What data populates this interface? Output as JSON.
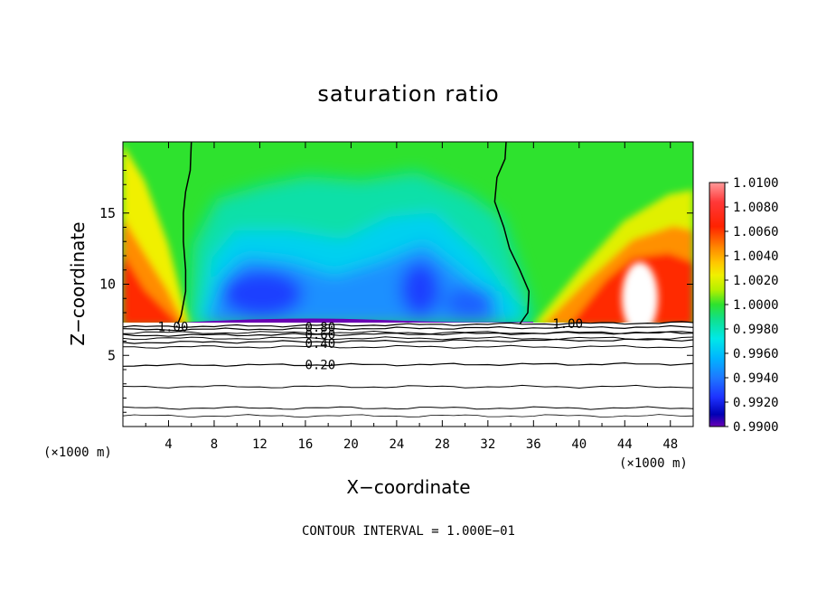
{
  "chart_data": {
    "type": "heatmap",
    "title": "saturation ratio",
    "xlabel": "X−coordinate",
    "ylabel": "Z−coordinate",
    "x_unit_left": "(×1000 m)",
    "x_unit_right": "(×1000 m)",
    "footer": "CONTOUR INTERVAL = 1.000E−01",
    "xlim": [
      0,
      50
    ],
    "ylim": [
      0,
      20
    ],
    "x_ticks": [
      4,
      8,
      12,
      16,
      20,
      24,
      28,
      32,
      36,
      40,
      44,
      48
    ],
    "y_ticks": [
      5,
      10,
      15
    ],
    "grid": false,
    "colorbar": {
      "levels": [
        "1.0100",
        "1.0080",
        "1.0060",
        "1.0040",
        "1.0020",
        "1.0000",
        "0.9980",
        "0.9960",
        "0.9940",
        "0.9920",
        "0.9900"
      ],
      "colors_top_to_bottom": [
        "#ff9090",
        "#ff3030",
        "#ff2200",
        "#ff8c00",
        "#ffc800",
        "#f0f000",
        "#b4f000",
        "#28e028",
        "#10e08c",
        "#00e8e8",
        "#00b4ff",
        "#1e78ff",
        "#1e32ff",
        "#0000b4",
        "#6a00b4"
      ]
    },
    "contour_lines": [
      {
        "label": "1.00",
        "z_at_left": 7.0,
        "z_at_right": 7.3
      },
      {
        "label": "0.80",
        "z_at_left": 6.8,
        "z_at_right": 7.0
      },
      {
        "label": "0.60",
        "z_at_left": 6.4,
        "z_at_right": 6.6
      },
      {
        "label": "0.40",
        "z_at_left": 5.9,
        "z_at_right": 6.1
      },
      {
        "label": "0.20",
        "z_at_left": 4.3,
        "z_at_right": 4.4
      }
    ],
    "saturation_boundary": {
      "label": "1.00",
      "left_x_at_z": [
        [
          4.8,
          7.2
        ],
        [
          5.1,
          7.8
        ],
        [
          5.5,
          9.5
        ],
        [
          5.5,
          11.0
        ],
        [
          5.3,
          13.0
        ],
        [
          5.3,
          15.0
        ],
        [
          5.5,
          16.5
        ],
        [
          5.9,
          18.0
        ],
        [
          6.0,
          20.0
        ]
      ],
      "right_x_at_z": [
        [
          34.8,
          7.2
        ],
        [
          35.5,
          8.0
        ],
        [
          35.6,
          9.5
        ],
        [
          34.8,
          11.0
        ],
        [
          33.9,
          12.5
        ],
        [
          33.4,
          14.0
        ],
        [
          32.6,
          15.8
        ],
        [
          32.8,
          17.5
        ],
        [
          33.5,
          18.8
        ],
        [
          33.6,
          20.0
        ]
      ]
    }
  }
}
